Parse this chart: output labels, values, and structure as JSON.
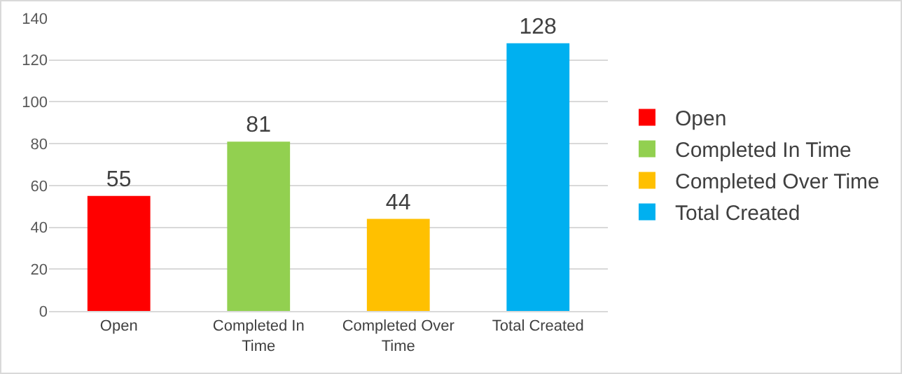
{
  "chart_data": {
    "type": "bar",
    "categories": [
      "Open",
      "Completed In Time",
      "Completed Over Time",
      "Total Created"
    ],
    "series": [
      {
        "name": "Open",
        "color": "#ff0000",
        "values": [
          55,
          null,
          null,
          null
        ]
      },
      {
        "name": "Completed In Time",
        "color": "#92d050",
        "values": [
          null,
          81,
          null,
          null
        ]
      },
      {
        "name": "Completed Over Time",
        "color": "#ffc000",
        "values": [
          null,
          null,
          44,
          null
        ]
      },
      {
        "name": "Total Created",
        "color": "#00b0f0",
        "values": [
          null,
          null,
          null,
          128
        ]
      }
    ],
    "ylim": [
      0,
      140
    ],
    "yticks": [
      0,
      20,
      40,
      60,
      80,
      100,
      120,
      140
    ],
    "grid": "y",
    "legend": "right",
    "data_labels": true
  }
}
